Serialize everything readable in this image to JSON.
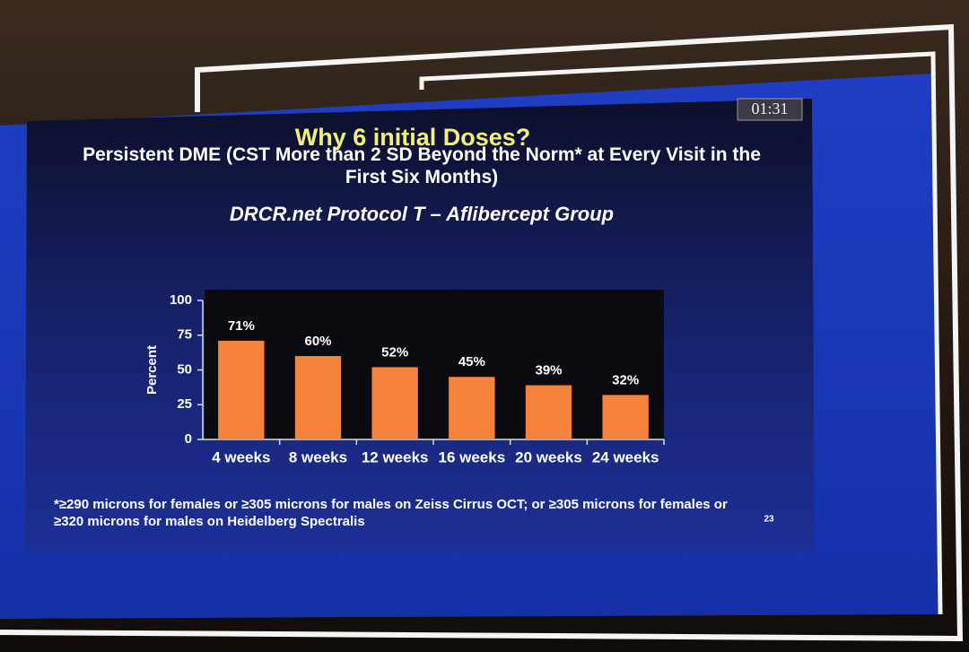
{
  "chart_data": {
    "type": "bar",
    "title": "Why 6 initial Doses?",
    "subtitles": [
      "Persistent DME (CST More than 2 SD Beyond the Norm* at Every Visit in the First Six Months)",
      "DRCR.net Protocol T – Aflibercept Group"
    ],
    "categories": [
      "4 weeks",
      "8 weeks",
      "12 weeks",
      "16 weeks",
      "20 weeks",
      "24 weeks"
    ],
    "values": [
      71,
      60,
      52,
      45,
      39,
      32
    ],
    "value_labels": [
      "71%",
      "60%",
      "52%",
      "45%",
      "39%",
      "32%"
    ],
    "color": "#f5833c",
    "ylabel": "Percent",
    "ylim": [
      0,
      100
    ],
    "yticks": [
      0,
      25,
      50,
      75,
      100
    ]
  },
  "timer": "01:31",
  "footnote": "*≥290 microns for females or ≥305 microns for males on Zeiss Cirrus OCT; or ≥305 microns for females or ≥320 microns for males on Heidelberg Spectralis",
  "slide_number": "23"
}
